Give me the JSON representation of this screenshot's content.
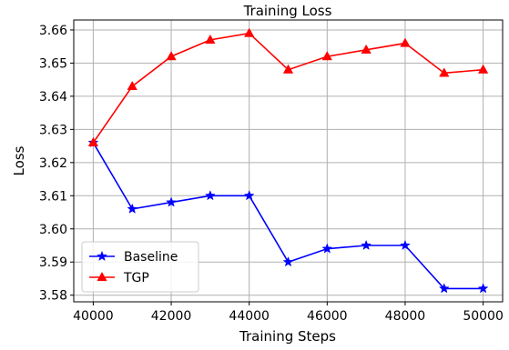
{
  "chart_data": {
    "type": "line",
    "title": "Training Loss",
    "xlabel": "Training Steps",
    "ylabel": "Loss",
    "x": [
      40000,
      41000,
      42000,
      43000,
      44000,
      45000,
      46000,
      47000,
      48000,
      49000,
      50000
    ],
    "xlim": [
      39500,
      50500
    ],
    "ylim": [
      3.578,
      3.663
    ],
    "xticks": [
      40000,
      42000,
      44000,
      46000,
      48000,
      50000
    ],
    "yticks": [
      3.58,
      3.59,
      3.6,
      3.61,
      3.62,
      3.63,
      3.64,
      3.65,
      3.66
    ],
    "xtick_labels": [
      "40000",
      "42000",
      "44000",
      "46000",
      "48000",
      "50000"
    ],
    "ytick_labels": [
      "3.58",
      "3.59",
      "3.60",
      "3.61",
      "3.62",
      "3.63",
      "3.64",
      "3.65",
      "3.66"
    ],
    "grid": true,
    "legend_position": "lower-left",
    "series": [
      {
        "name": "Baseline",
        "color": "#0000ff",
        "marker": "star",
        "values": [
          3.626,
          3.606,
          3.608,
          3.61,
          3.61,
          3.59,
          3.594,
          3.595,
          3.595,
          3.582,
          3.582
        ]
      },
      {
        "name": "TGP",
        "color": "#ff0000",
        "marker": "triangle",
        "values": [
          3.626,
          3.643,
          3.652,
          3.657,
          3.659,
          3.648,
          3.652,
          3.654,
          3.656,
          3.647,
          3.648
        ]
      }
    ]
  }
}
